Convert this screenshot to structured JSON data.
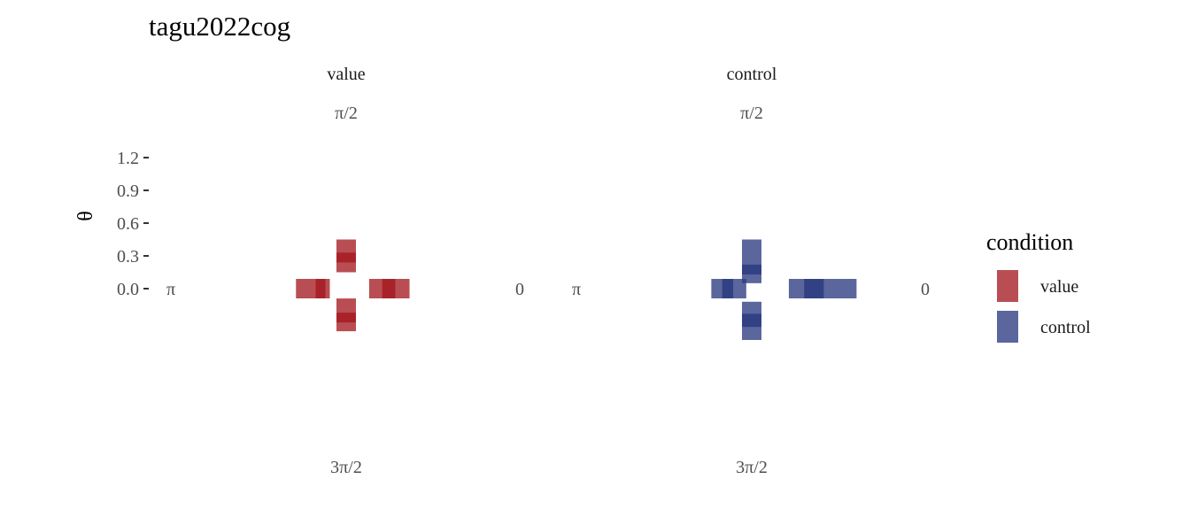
{
  "chart_data": {
    "type": "polar-bar",
    "title": "tagu2022cog",
    "ylabel": "θ",
    "yticks": [
      "0.0",
      "0.3",
      "0.6",
      "0.9",
      "1.2"
    ],
    "ylim": [
      0,
      1.2
    ],
    "direction_labels": {
      "right": "0",
      "top": "π/2",
      "left": "π",
      "bottom": "3π/2"
    },
    "legend": {
      "title": "condition",
      "placement": "right"
    },
    "facets": [
      {
        "name": "value",
        "color": "#a41c22",
        "arms": [
          {
            "angle": "0",
            "from": 0.21,
            "to": 0.58,
            "core_from": 0.33,
            "core_to": 0.45
          },
          {
            "angle": "π/2",
            "from": 0.15,
            "to": 0.45,
            "core_from": 0.24,
            "core_to": 0.33
          },
          {
            "angle": "π",
            "from": 0.15,
            "to": 0.46,
            "core_from": 0.19,
            "core_to": 0.28
          },
          {
            "angle": "3π/2",
            "from": 0.09,
            "to": 0.39,
            "core_from": 0.22,
            "core_to": 0.31
          }
        ]
      },
      {
        "name": "control",
        "color": "#2b3b80",
        "arms": [
          {
            "angle": "0",
            "from": 0.34,
            "to": 0.96,
            "core_from": 0.48,
            "core_to": 0.66
          },
          {
            "angle": "π/2",
            "from": 0.05,
            "to": 0.45,
            "core_from": 0.13,
            "core_to": 0.22
          },
          {
            "angle": "π",
            "from": 0.05,
            "to": 0.37,
            "core_from": 0.17,
            "core_to": 0.27
          },
          {
            "angle": "3π/2",
            "from": 0.12,
            "to": 0.47,
            "core_from": 0.23,
            "core_to": 0.35
          }
        ]
      }
    ]
  }
}
